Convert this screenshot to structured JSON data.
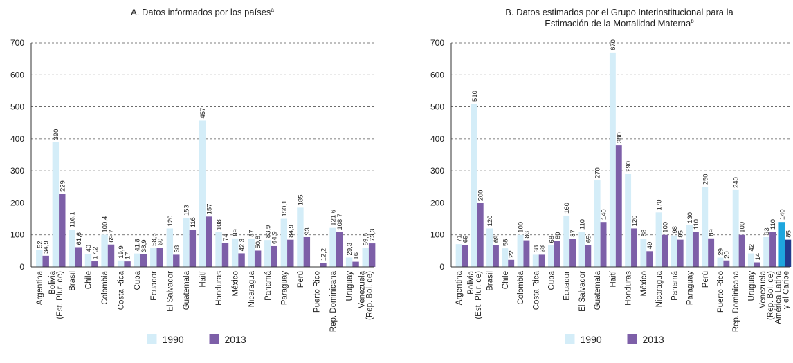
{
  "chart_data": [
    {
      "type": "bar",
      "title": "A. Datos informados por los países",
      "title_note": "a",
      "categories": [
        "Argentina",
        [
          "Bolivia",
          "(Est. Plur. de)"
        ],
        "Brasil",
        "Chile",
        "Colombia",
        "Costa Rica",
        "Cuba",
        "Ecuador",
        "El Salvador",
        "Guatemala",
        "Haití",
        "Honduras",
        "México",
        "Nicaragua",
        "Panamá",
        "Paraguay",
        "Perú",
        "Puerto Rico",
        "Rep. Dominicana",
        "Uruguay",
        [
          "Venezuela",
          "(Rep. Bol. de)"
        ]
      ],
      "series": [
        {
          "name": "1990",
          "color": "#d4edf8",
          "values": [
            52,
            390,
            116.1,
            40,
            100.4,
            19.9,
            41.8,
            58.6,
            120,
            153,
            457,
            108,
            89,
            87,
            83.9,
            150.1,
            185,
            null,
            121.6,
            29.3,
            59.6
          ],
          "value_labels": [
            "52",
            "390",
            "116,1",
            "40",
            "100,4",
            "19,9",
            "41,8",
            "58,6",
            "120",
            "153",
            "457",
            "108",
            "89",
            "87",
            "83,9",
            "150,1",
            "185",
            null,
            "121,6",
            "29,3",
            "59,6"
          ]
        },
        {
          "name": "2013",
          "color": "#7d5fa8",
          "values": [
            34.9,
            229,
            61.6,
            17.2,
            69.7,
            17,
            38.9,
            60,
            38,
            116,
            157,
            74,
            42.3,
            50.8,
            64.9,
            84.9,
            93,
            12.2,
            108.7,
            16,
            73.3
          ],
          "value_labels": [
            "34,9",
            "229",
            "61,6",
            "17,2",
            "69,7",
            "17",
            "38,9",
            "60",
            "38",
            "116",
            "157",
            "74",
            "42,3",
            "50,8",
            "64,9",
            "84,9",
            "93",
            "12,2",
            "108,7",
            "16",
            "73,3"
          ]
        }
      ],
      "ylim": [
        0,
        700
      ],
      "yticks": [
        0,
        100,
        200,
        300,
        400,
        500,
        600,
        700
      ],
      "grid": true
    },
    {
      "type": "bar",
      "title": "B. Datos estimados por el Grupo Interinstitucional para la Estimación de la Mortalidad Materna",
      "title_note": "b",
      "categories": [
        "Argentina",
        [
          "Bolivia",
          "(Est. Plur. de)"
        ],
        "Brasil",
        "Chile",
        "Colombia",
        "Costa Rica",
        "Cuba",
        "Ecuador",
        "El Salvador",
        "Guatemala",
        "Haití",
        "Honduras",
        "México",
        "Nicaragua",
        "Panamá",
        "Paraguay",
        "Perú",
        "Puerto Rico",
        "Rep. Dominicana",
        "Uruguay",
        [
          "Venezuela",
          "(Rep. Bol. de)"
        ],
        [
          "América Latina",
          "y el Caribe"
        ]
      ],
      "series": [
        {
          "name": "1990",
          "color": "#d4edf8",
          "highlight_color": "#1ea6de",
          "values": [
            71,
            510,
            120,
            58,
            100,
            38,
            68,
            160,
            110,
            270,
            670,
            290,
            88,
            170,
            98,
            130,
            250,
            29,
            240,
            42,
            93,
            140
          ]
        },
        {
          "name": "2013",
          "color": "#7d5fa8",
          "highlight_color": "#233a8c",
          "values": [
            69,
            200,
            69,
            22,
            83,
            38,
            80,
            87,
            69,
            140,
            380,
            120,
            49,
            100,
            85,
            110,
            89,
            20,
            100,
            14,
            110,
            85
          ]
        }
      ],
      "highlight_last": true,
      "ylim": [
        0,
        700
      ],
      "yticks": [
        0,
        100,
        200,
        300,
        400,
        500,
        600,
        700
      ],
      "grid": true
    }
  ]
}
